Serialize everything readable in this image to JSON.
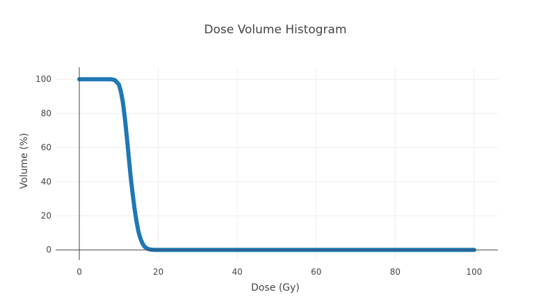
{
  "chart_data": {
    "type": "line",
    "title": "Dose Volume Histogram",
    "xlabel": "Dose (Gy)",
    "ylabel": "Volume (%)",
    "xlim": [
      -6,
      106
    ],
    "ylim": [
      -6,
      107
    ],
    "xticks": [
      0,
      20,
      40,
      60,
      80,
      100
    ],
    "yticks": [
      0,
      20,
      40,
      60,
      80,
      100
    ],
    "grid": true,
    "legend": "none",
    "series_color": "#1f77b4",
    "series": [
      {
        "x": [
          0,
          2,
          4,
          6,
          8,
          9,
          10,
          10.5,
          11,
          11.5,
          12,
          12.5,
          13,
          13.5,
          14,
          14.5,
          15,
          15.5,
          16,
          16.5,
          17,
          17.5,
          18,
          19,
          20,
          30,
          40,
          50,
          60,
          70,
          80,
          90,
          100
        ],
        "y": [
          100,
          100,
          100,
          100,
          100,
          99.5,
          97,
          93,
          87,
          78,
          67,
          55,
          43,
          33,
          24,
          16.5,
          10.5,
          6.5,
          3.8,
          2,
          1,
          0.5,
          0.2,
          0,
          0,
          0,
          0,
          0,
          0,
          0,
          0,
          0,
          0
        ]
      }
    ]
  }
}
